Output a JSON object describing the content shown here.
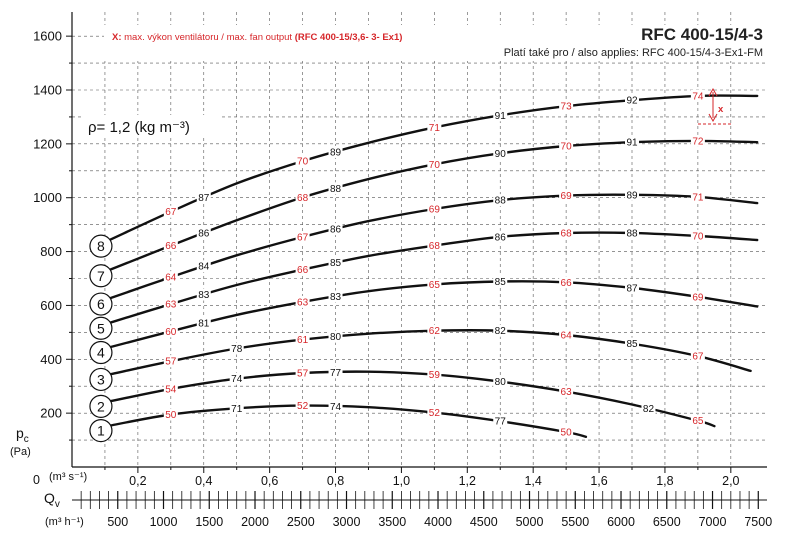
{
  "header": {
    "title": "RFC 400-15/4-3",
    "subtitle": "Platí také pro / also applies: RFC 400-15/4-3-Ex1-FM",
    "note_prefix": "X:",
    "note_text": " max. výkon ventilátoru / max. fan output ",
    "note_model": "(RFC 400-15/3,6- 3- Ex1)",
    "x_marker": "x"
  },
  "density_label": "ρ= 1,2 (kg m⁻³)",
  "colors": {
    "curve": "#111111",
    "grid": "#555555",
    "spl_text": "#d6262a",
    "note": "#d6262a"
  },
  "chart_data": {
    "type": "line",
    "title": "RFC 400-15/4-3",
    "y_axis": {
      "label": "pc",
      "unit": "(Pa)",
      "label_main": "p",
      "label_sub": "c",
      "range": [
        0,
        1640
      ],
      "ticks": [
        200,
        400,
        600,
        800,
        1000,
        1200,
        1400,
        1600
      ],
      "tick_labels": [
        "200",
        "400",
        "600",
        "800",
        "1000",
        "1200",
        "1400",
        "1600"
      ]
    },
    "x_axis": {
      "label": "Qv",
      "label_main": "Q",
      "label_sub": "v",
      "unit_label": "(m³ s⁻¹)",
      "range": [
        0,
        2.1
      ],
      "ticks": [
        0.2,
        0.4,
        0.6,
        0.8,
        1.0,
        1.2,
        1.4,
        1.6,
        1.8,
        2.0
      ],
      "tick_labels": [
        "0,2",
        "0,4",
        "0,6",
        "0,8",
        "1,0",
        "1,2",
        "1,4",
        "1,6",
        "1,8",
        "2,0"
      ],
      "origin_label": "0"
    },
    "x_axis_secondary": {
      "unit_label": "(m³ h⁻¹)",
      "ticks": [
        500,
        1000,
        1500,
        2000,
        2500,
        3000,
        3500,
        4000,
        4500,
        5000,
        5500,
        6000,
        6500,
        7000,
        7500
      ],
      "tick_labels": [
        "500",
        "1000",
        "1500",
        "2000",
        "2500",
        "3000",
        "3500",
        "4000",
        "4500",
        "5000",
        "5500",
        "6000",
        "6500",
        "7000",
        "7500"
      ]
    },
    "grid": true,
    "series": [
      {
        "name": "1",
        "points": [
          [
            0.1,
            150
          ],
          [
            0.3,
            195
          ],
          [
            0.5,
            218
          ],
          [
            0.7,
            228
          ],
          [
            0.9,
            222
          ],
          [
            1.1,
            202
          ],
          [
            1.3,
            170
          ],
          [
            1.5,
            130
          ],
          [
            1.56,
            112
          ]
        ]
      },
      {
        "name": "2",
        "points": [
          [
            0.1,
            240
          ],
          [
            0.3,
            290
          ],
          [
            0.5,
            328
          ],
          [
            0.7,
            349
          ],
          [
            0.9,
            354
          ],
          [
            1.1,
            343
          ],
          [
            1.3,
            317
          ],
          [
            1.5,
            280
          ],
          [
            1.7,
            232
          ],
          [
            1.9,
            172
          ],
          [
            1.95,
            152
          ]
        ]
      },
      {
        "name": "3",
        "points": [
          [
            0.1,
            340
          ],
          [
            0.3,
            393
          ],
          [
            0.5,
            440
          ],
          [
            0.7,
            473
          ],
          [
            0.9,
            495
          ],
          [
            1.1,
            506
          ],
          [
            1.3,
            506
          ],
          [
            1.5,
            490
          ],
          [
            1.7,
            458
          ],
          [
            1.9,
            412
          ],
          [
            2.06,
            357
          ]
        ]
      },
      {
        "name": "4",
        "points": [
          [
            0.1,
            440
          ],
          [
            0.3,
            504
          ],
          [
            0.5,
            565
          ],
          [
            0.7,
            613
          ],
          [
            0.9,
            653
          ],
          [
            1.1,
            678
          ],
          [
            1.3,
            689
          ],
          [
            1.5,
            686
          ],
          [
            1.7,
            665
          ],
          [
            1.9,
            632
          ],
          [
            2.08,
            596
          ]
        ]
      },
      {
        "name": "5",
        "points": [
          [
            0.1,
            530
          ],
          [
            0.3,
            605
          ],
          [
            0.5,
            676
          ],
          [
            0.7,
            733
          ],
          [
            0.9,
            784
          ],
          [
            1.1,
            822
          ],
          [
            1.3,
            855
          ],
          [
            1.5,
            869
          ],
          [
            1.7,
            869
          ],
          [
            1.9,
            858
          ],
          [
            2.08,
            843
          ]
        ]
      },
      {
        "name": "6",
        "points": [
          [
            0.1,
            620
          ],
          [
            0.3,
            705
          ],
          [
            0.5,
            786
          ],
          [
            0.7,
            854
          ],
          [
            0.9,
            913
          ],
          [
            1.1,
            958
          ],
          [
            1.3,
            991
          ],
          [
            1.5,
            1008
          ],
          [
            1.7,
            1011
          ],
          [
            1.9,
            1003
          ],
          [
            2.08,
            980
          ]
        ]
      },
      {
        "name": "7",
        "points": [
          [
            0.1,
            725
          ],
          [
            0.3,
            822
          ],
          [
            0.5,
            916
          ],
          [
            0.7,
            1001
          ],
          [
            0.9,
            1069
          ],
          [
            1.1,
            1124
          ],
          [
            1.3,
            1165
          ],
          [
            1.5,
            1192
          ],
          [
            1.7,
            1206
          ],
          [
            1.9,
            1211
          ],
          [
            2.08,
            1206
          ]
        ]
      },
      {
        "name": "8",
        "points": [
          [
            0.1,
            835
          ],
          [
            0.3,
            948
          ],
          [
            0.5,
            1053
          ],
          [
            0.7,
            1136
          ],
          [
            0.9,
            1204
          ],
          [
            1.1,
            1261
          ],
          [
            1.3,
            1306
          ],
          [
            1.5,
            1340
          ],
          [
            1.7,
            1362
          ],
          [
            1.9,
            1378
          ],
          [
            2.08,
            1378
          ]
        ]
      }
    ],
    "rpm_labels": [
      {
        "series": "1",
        "x": 0.5,
        "text": "71"
      },
      {
        "series": "1",
        "x": 0.8,
        "text": "74"
      },
      {
        "series": "1",
        "x": 1.3,
        "text": "77"
      },
      {
        "series": "2",
        "x": 0.5,
        "text": "74"
      },
      {
        "series": "2",
        "x": 0.8,
        "text": "77"
      },
      {
        "series": "2",
        "x": 1.3,
        "text": "80"
      },
      {
        "series": "2",
        "x": 1.75,
        "text": "82"
      },
      {
        "series": "3",
        "x": 0.5,
        "text": "78"
      },
      {
        "series": "3",
        "x": 0.8,
        "text": "80"
      },
      {
        "series": "3",
        "x": 1.3,
        "text": "82"
      },
      {
        "series": "3",
        "x": 1.7,
        "text": "85"
      },
      {
        "series": "4",
        "x": 0.4,
        "text": "81"
      },
      {
        "series": "4",
        "x": 0.8,
        "text": "83"
      },
      {
        "series": "4",
        "x": 1.3,
        "text": "85"
      },
      {
        "series": "4",
        "x": 1.7,
        "text": "87"
      },
      {
        "series": "5",
        "x": 0.4,
        "text": "83"
      },
      {
        "series": "5",
        "x": 0.8,
        "text": "85"
      },
      {
        "series": "5",
        "x": 1.3,
        "text": "86"
      },
      {
        "series": "5",
        "x": 1.7,
        "text": "88"
      },
      {
        "series": "6",
        "x": 0.4,
        "text": "84"
      },
      {
        "series": "6",
        "x": 0.8,
        "text": "86"
      },
      {
        "series": "6",
        "x": 1.3,
        "text": "88"
      },
      {
        "series": "6",
        "x": 1.7,
        "text": "89"
      },
      {
        "series": "7",
        "x": 0.4,
        "text": "86"
      },
      {
        "series": "7",
        "x": 0.8,
        "text": "88"
      },
      {
        "series": "7",
        "x": 1.3,
        "text": "90"
      },
      {
        "series": "7",
        "x": 1.7,
        "text": "91"
      },
      {
        "series": "8",
        "x": 0.4,
        "text": "87"
      },
      {
        "series": "8",
        "x": 0.8,
        "text": "89"
      },
      {
        "series": "8",
        "x": 1.3,
        "text": "91"
      },
      {
        "series": "8",
        "x": 1.7,
        "text": "92"
      }
    ],
    "spl_labels": [
      {
        "series": "1",
        "x": 0.3,
        "text": "50"
      },
      {
        "series": "1",
        "x": 0.7,
        "text": "52"
      },
      {
        "series": "1",
        "x": 1.1,
        "text": "52"
      },
      {
        "series": "1",
        "x": 1.5,
        "text": "50"
      },
      {
        "series": "2",
        "x": 0.3,
        "text": "54"
      },
      {
        "series": "2",
        "x": 0.7,
        "text": "57"
      },
      {
        "series": "2",
        "x": 1.1,
        "text": "59"
      },
      {
        "series": "2",
        "x": 1.5,
        "text": "63"
      },
      {
        "series": "2",
        "x": 1.9,
        "text": "65"
      },
      {
        "series": "3",
        "x": 0.3,
        "text": "57"
      },
      {
        "series": "3",
        "x": 0.7,
        "text": "61"
      },
      {
        "series": "3",
        "x": 1.1,
        "text": "62"
      },
      {
        "series": "3",
        "x": 1.5,
        "text": "64"
      },
      {
        "series": "3",
        "x": 1.9,
        "text": "67"
      },
      {
        "series": "4",
        "x": 0.3,
        "text": "60"
      },
      {
        "series": "4",
        "x": 0.7,
        "text": "63"
      },
      {
        "series": "4",
        "x": 1.1,
        "text": "65"
      },
      {
        "series": "4",
        "x": 1.5,
        "text": "66"
      },
      {
        "series": "4",
        "x": 1.9,
        "text": "69"
      },
      {
        "series": "5",
        "x": 0.3,
        "text": "63"
      },
      {
        "series": "5",
        "x": 0.7,
        "text": "66"
      },
      {
        "series": "5",
        "x": 1.1,
        "text": "68"
      },
      {
        "series": "5",
        "x": 1.5,
        "text": "68"
      },
      {
        "series": "5",
        "x": 1.9,
        "text": "70"
      },
      {
        "series": "6",
        "x": 0.3,
        "text": "64"
      },
      {
        "series": "6",
        "x": 0.7,
        "text": "67"
      },
      {
        "series": "6",
        "x": 1.1,
        "text": "69"
      },
      {
        "series": "6",
        "x": 1.5,
        "text": "69"
      },
      {
        "series": "6",
        "x": 1.9,
        "text": "71"
      },
      {
        "series": "7",
        "x": 0.3,
        "text": "66"
      },
      {
        "series": "7",
        "x": 0.7,
        "text": "68"
      },
      {
        "series": "7",
        "x": 1.1,
        "text": "70"
      },
      {
        "series": "7",
        "x": 1.5,
        "text": "70"
      },
      {
        "series": "7",
        "x": 1.9,
        "text": "72"
      },
      {
        "series": "8",
        "x": 0.3,
        "text": "67"
      },
      {
        "series": "8",
        "x": 0.7,
        "text": "70"
      },
      {
        "series": "8",
        "x": 1.1,
        "text": "71"
      },
      {
        "series": "8",
        "x": 1.5,
        "text": "73"
      },
      {
        "series": "8",
        "x": 1.9,
        "text": "74"
      }
    ]
  }
}
